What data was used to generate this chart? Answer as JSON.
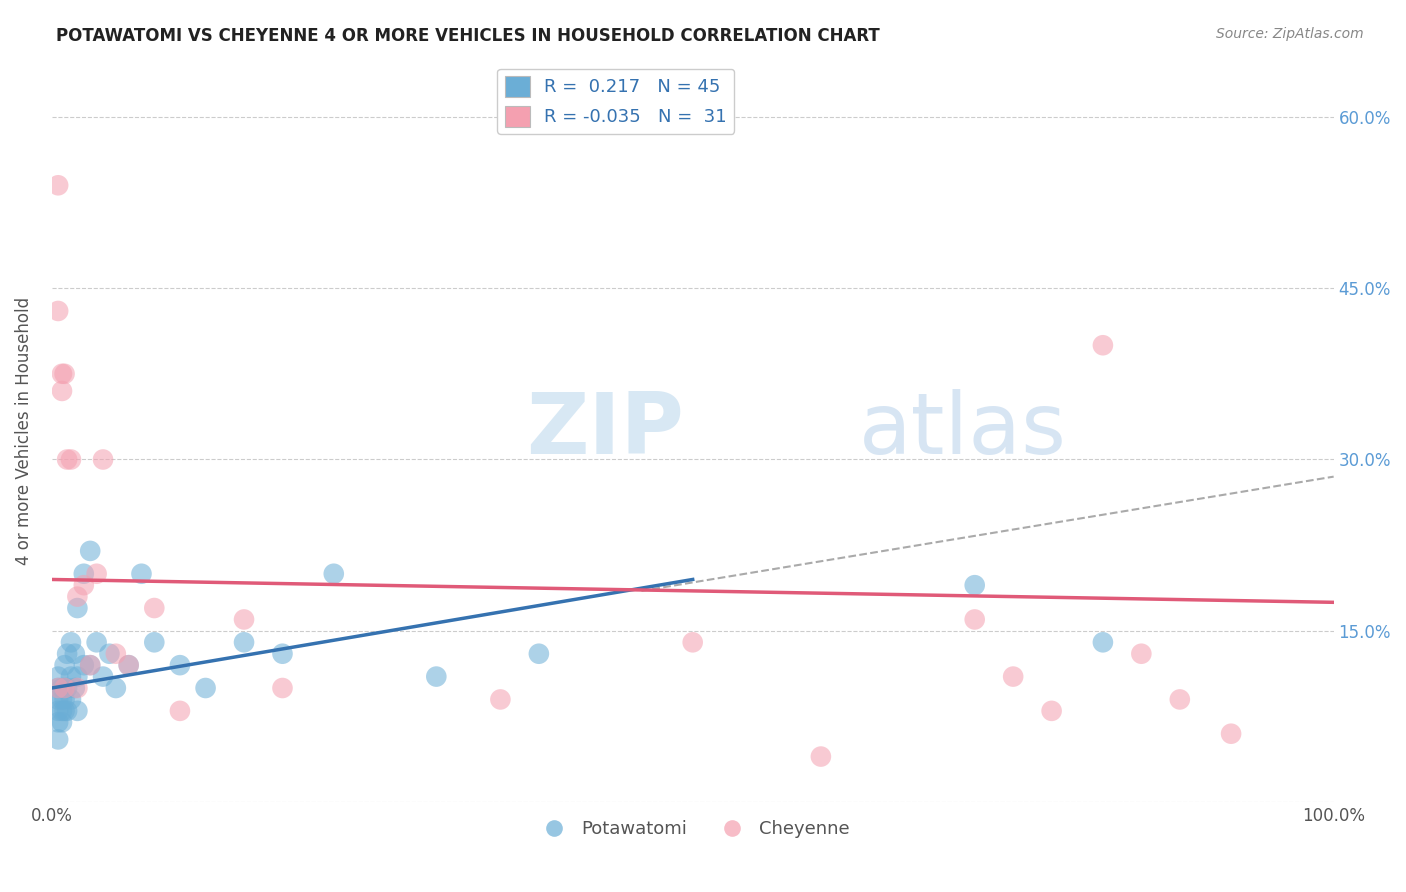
{
  "title": "POTAWATOMI VS CHEYENNE 4 OR MORE VEHICLES IN HOUSEHOLD CORRELATION CHART",
  "source": "Source: ZipAtlas.com",
  "ylabel": "4 or more Vehicles in Household",
  "xlim": [
    0.0,
    1.0
  ],
  "ylim": [
    0.0,
    0.65
  ],
  "xticks": [
    0.0,
    0.2,
    0.4,
    0.6,
    0.8,
    1.0
  ],
  "xticklabels": [
    "0.0%",
    "",
    "",
    "",
    "",
    "100.0%"
  ],
  "yticks": [
    0.0,
    0.15,
    0.3,
    0.45,
    0.6
  ],
  "yticks_right": [
    0.15,
    0.3,
    0.45,
    0.6
  ],
  "yticklabels_right": [
    "15.0%",
    "30.0%",
    "45.0%",
    "60.0%"
  ],
  "legend_R1": "0.217",
  "legend_N1": "45",
  "legend_R2": "-0.035",
  "legend_N2": "31",
  "color_blue": "#6baed6",
  "color_pink": "#f4a0b0",
  "color_blue_line": "#3572b0",
  "color_pink_line": "#e05a78",
  "color_dashed": "#aaaaaa",
  "potawatomi_x": [
    0.005,
    0.005,
    0.005,
    0.005,
    0.005,
    0.005,
    0.008,
    0.008,
    0.008,
    0.008,
    0.01,
    0.01,
    0.01,
    0.01,
    0.012,
    0.012,
    0.012,
    0.015,
    0.015,
    0.015,
    0.018,
    0.018,
    0.02,
    0.02,
    0.02,
    0.025,
    0.025,
    0.03,
    0.03,
    0.035,
    0.04,
    0.045,
    0.05,
    0.06,
    0.07,
    0.08,
    0.1,
    0.12,
    0.15,
    0.18,
    0.22,
    0.3,
    0.38,
    0.72,
    0.82
  ],
  "potawatomi_y": [
    0.055,
    0.07,
    0.08,
    0.09,
    0.1,
    0.11,
    0.07,
    0.08,
    0.09,
    0.1,
    0.08,
    0.09,
    0.1,
    0.12,
    0.08,
    0.1,
    0.13,
    0.09,
    0.11,
    0.14,
    0.1,
    0.13,
    0.08,
    0.11,
    0.17,
    0.12,
    0.2,
    0.12,
    0.22,
    0.14,
    0.11,
    0.13,
    0.1,
    0.12,
    0.2,
    0.14,
    0.12,
    0.1,
    0.14,
    0.13,
    0.2,
    0.11,
    0.13,
    0.19,
    0.14
  ],
  "cheyenne_x": [
    0.005,
    0.005,
    0.005,
    0.008,
    0.008,
    0.01,
    0.01,
    0.012,
    0.015,
    0.02,
    0.02,
    0.025,
    0.03,
    0.035,
    0.04,
    0.05,
    0.06,
    0.08,
    0.1,
    0.15,
    0.18,
    0.35,
    0.5,
    0.6,
    0.72,
    0.75,
    0.78,
    0.82,
    0.85,
    0.88,
    0.92
  ],
  "cheyenne_y": [
    0.54,
    0.43,
    0.1,
    0.375,
    0.36,
    0.375,
    0.1,
    0.3,
    0.3,
    0.18,
    0.1,
    0.19,
    0.12,
    0.2,
    0.3,
    0.13,
    0.12,
    0.17,
    0.08,
    0.16,
    0.1,
    0.09,
    0.14,
    0.04,
    0.16,
    0.11,
    0.08,
    0.4,
    0.13,
    0.09,
    0.06
  ],
  "blue_line_x0": 0.0,
  "blue_line_y0": 0.1,
  "blue_line_x1": 0.5,
  "blue_line_y1": 0.195,
  "pink_line_x0": 0.0,
  "pink_line_y0": 0.195,
  "pink_line_x1": 1.0,
  "pink_line_y1": 0.175,
  "dashed_line_x0": 0.46,
  "dashed_line_y0": 0.185,
  "dashed_line_x1": 1.0,
  "dashed_line_y1": 0.285
}
